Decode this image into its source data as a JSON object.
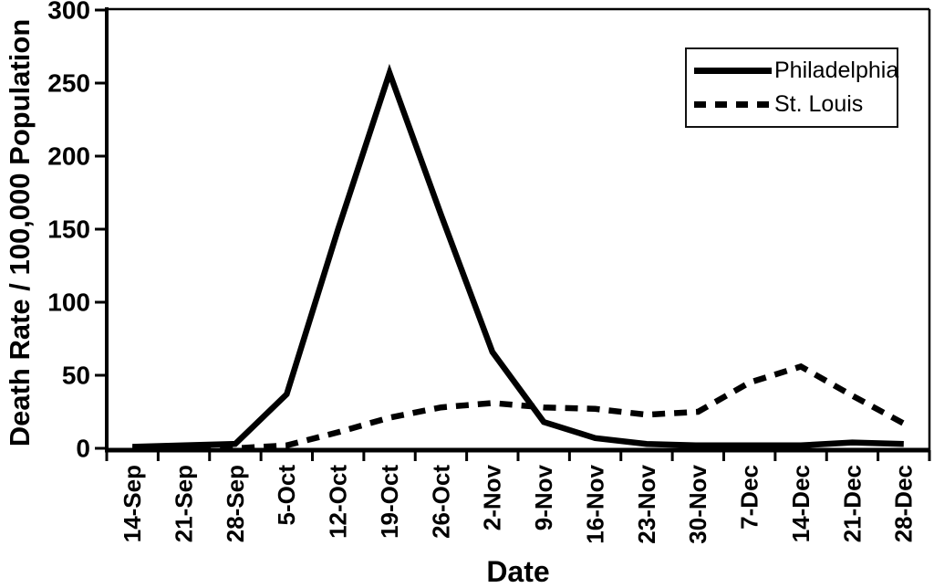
{
  "figure": {
    "background": "#ffffff",
    "ink_color": "#000000"
  },
  "chart_data": {
    "type": "line",
    "title": "",
    "xlabel": "Date",
    "ylabel": "Death Rate / 100,000 Population",
    "ylim": [
      0,
      300
    ],
    "yticks": [
      0,
      50,
      100,
      150,
      200,
      250,
      300
    ],
    "grid": false,
    "legend_position": "top-right",
    "categories": [
      "14-Sep",
      "21-Sep",
      "28-Sep",
      "5-Oct",
      "12-Oct",
      "19-Oct",
      "26-Oct",
      "2-Nov",
      "9-Nov",
      "16-Nov",
      "23-Nov",
      "30-Nov",
      "7-Dec",
      "14-Dec",
      "21-Dec",
      "28-Dec"
    ],
    "series": [
      {
        "name": "Philadelphia",
        "line_style": "solid",
        "color": "#000000",
        "values": [
          1,
          2,
          3,
          37,
          150,
          257,
          160,
          66,
          18,
          7,
          3,
          2,
          2,
          2,
          4,
          3
        ]
      },
      {
        "name": "St. Louis",
        "line_style": "dashed",
        "color": "#000000",
        "values": [
          0,
          0,
          0,
          2,
          11,
          21,
          28,
          31,
          28,
          27,
          23,
          25,
          45,
          56,
          36,
          17
        ]
      }
    ]
  }
}
